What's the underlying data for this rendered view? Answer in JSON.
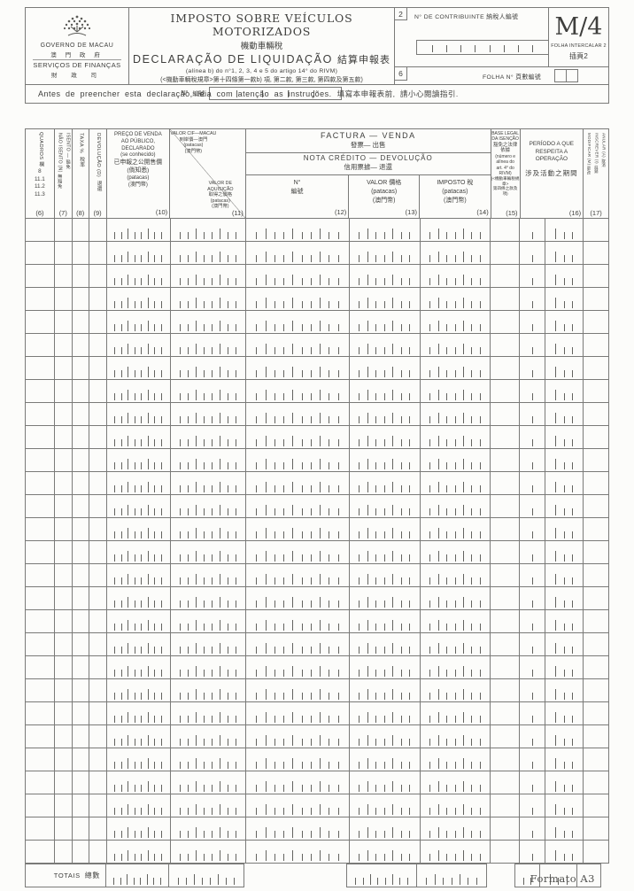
{
  "page": {
    "footer": "Formato A3"
  },
  "header": {
    "logo": {
      "l1": "GOVERNO DE MACAU",
      "l2": "澳 門 政 府",
      "l3": "SERVIÇOS DE FINANÇAS",
      "l4": "財 政 司"
    },
    "title": {
      "pt": "IMPOSTO SOBRE VEÍCULOS MOTORIZADOS",
      "zh": "機動車輛稅",
      "sub_pt": "DECLARAÇÃO DE LIQUIDAÇÃO",
      "sub_zh": "結算申報表",
      "ref1": "(alínea b) do n°1, 2, 3, 4 e 5 do artigo 14° do RIVM)",
      "ref2": "(<機動車輛稅規章>第十四條第一款b) 項, 第二款, 第三款, 第四款及第五款)",
      "num_label": "N°",
      "num_label_zh": "編號",
      "num_ticks": 4
    },
    "contribuinte": {
      "badge": "2",
      "label": "N° DE CONTRIBUINTE  納稅人編號",
      "ticks": 8
    },
    "form_code": "M/4",
    "intercalar": {
      "pt": "FOLHA INTERCALAR 2",
      "zh": "插頁2"
    },
    "folha": {
      "badge": "6",
      "label": "FOLHA N°  頁數編號"
    },
    "instruction": {
      "pt": "Antes de preencher esta declaração, leia com atenção as instruções.",
      "zh": "填寫本申報表前, 請小心閱讀指引."
    }
  },
  "table": {
    "col6": {
      "title": "QUADROS 欄",
      "rows": "8\n11.1\n11.2\n11.3",
      "num": "(6)"
    },
    "col7": {
      "title": "ISENTO — 豁免\nNÃO ISENTO (N) 無豁免",
      "num": "(7)"
    },
    "col8": {
      "title": "TAXA %  稅率",
      "num": "(8)"
    },
    "col9": {
      "title": "DEVOLUÇÃO (D)  退還",
      "num": "(9)"
    },
    "col10": {
      "t1": "PREÇO DE VENDA\nAO PÚBLICO,\nDECLARADO\n(se conhecido)",
      "t2": "已申報之公開售價\n(倘知悉)",
      "t3": "(patacas)\n(澳門幣)",
      "num": "(10)"
    },
    "col11": {
      "a1": "VALOR CIF—MACAU\n到岸價—澳門\n(patacas)\n(澳門幣)",
      "b1": "VALOR DE\nAQUISIÇÃO\n取得之價格\n(patacas)\n(澳門幣)",
      "num": "(11)"
    },
    "group": {
      "t1": "FACTURA  —  VENDA",
      "t1_zh": "發票— 出售",
      "t2": "NOTA  CRÉDITO  —  DEVOLUÇÃO",
      "t2_zh": "信用票據— 退還"
    },
    "col12": {
      "t1": "N°",
      "t2": "編號",
      "num": "(12)"
    },
    "col13": {
      "t1": "VALOR  價格",
      "t2": "(patacas)\n(澳門幣)",
      "num": "(13)"
    },
    "col14": {
      "t1": "IMPOSTO  稅",
      "t2": "(patacas)\n(澳門幣)",
      "num": "(14)"
    },
    "col15": {
      "t1": "BASE LEGAL\nDA ISENÇÃO",
      "t2": "豁免之法律依據",
      "t3": "(número e\nalínea do\nart. 4° do\nRIVM)",
      "t4": "(<機動車輛稅規章>\n第四條之款及項)",
      "num": "(15)"
    },
    "col16": {
      "t1": "PERÍODO A QUE\nRESPEITA A OPERAÇÃO",
      "t2": "涉及活動之期間",
      "num": "(16)"
    },
    "col17": {
      "title": "ANULAR (A) 取消\nINSCREVER (I) 註銷\nMODIFICAR (M) 更改",
      "num": "(17)"
    },
    "body": {
      "rows": 28,
      "columns": [
        {
          "id": "c6",
          "ticks": 0
        },
        {
          "id": "c7",
          "ticks": 0
        },
        {
          "id": "c8",
          "ticks": 0
        },
        {
          "id": "c9",
          "ticks": 0
        },
        {
          "id": "c10",
          "ticks": 8
        },
        {
          "id": "c11",
          "ticks": 8
        },
        {
          "id": "c12",
          "ticks": 10
        },
        {
          "id": "c13",
          "ticks": 7
        },
        {
          "id": "c14",
          "ticks": 7
        },
        {
          "id": "c15",
          "ticks": 0
        },
        {
          "id": "c16a",
          "ticks": 1
        },
        {
          "id": "c16b",
          "ticks": 3
        },
        {
          "id": "c17",
          "ticks": 0
        }
      ]
    },
    "totals": {
      "label": "TOTAIS",
      "label_zh": "總數",
      "cells": [
        {
          "id": "c10",
          "ticks": 8
        },
        {
          "id": "c11",
          "ticks": 8
        },
        {
          "id": "c12",
          "ticks": 0,
          "ghost": true
        },
        {
          "id": "c13",
          "ticks": 8
        },
        {
          "id": "c14",
          "ticks": 7
        },
        {
          "id": "c15",
          "ticks": 0,
          "ghost": true
        },
        {
          "id": "c16a",
          "ticks": 2
        },
        {
          "id": "c16b",
          "ticks": 3
        },
        {
          "id": "c17",
          "ticks": 0
        }
      ]
    }
  }
}
